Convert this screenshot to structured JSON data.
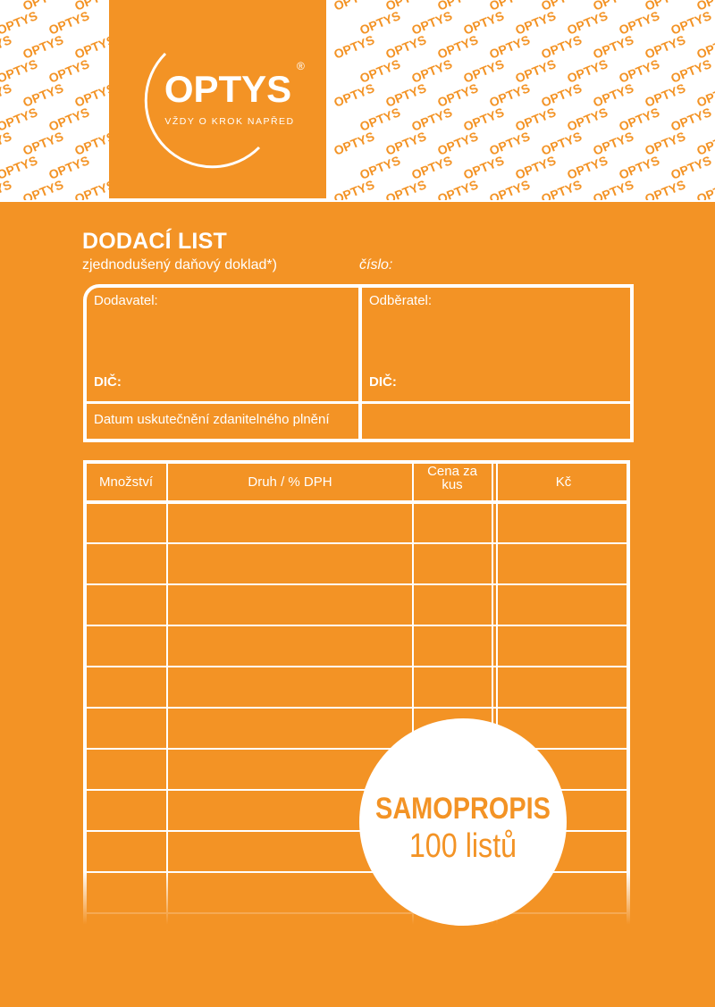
{
  "logo": {
    "name": "OPTYS",
    "mark": "®",
    "tagline": "VŽDY O KROK NAPŘED"
  },
  "pattern_word": "OPTYS",
  "header": {
    "title": "DODACÍ LIST",
    "subtitle": "zjednodušený daňový doklad*)",
    "number_label": "číslo:"
  },
  "parties": {
    "supplier": "Dodavatel:",
    "customer": "Odběratel:",
    "supplier_tax_id": "DIČ:",
    "customer_tax_id": "DIČ:",
    "date_label": "Datum uskutečnění zdanitelného plnění"
  },
  "table": {
    "columns": [
      "Množství",
      "Druh / % DPH",
      "Cena za kus",
      "Kč"
    ]
  },
  "badge": {
    "line1": "SAMOPROPIS",
    "line2": "100 listů"
  }
}
